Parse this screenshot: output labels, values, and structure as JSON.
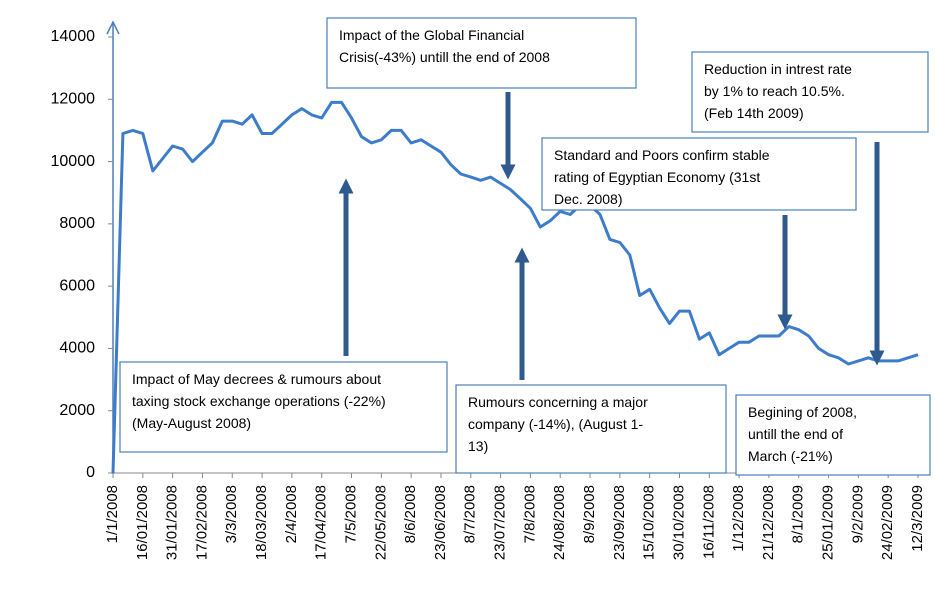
{
  "chart_data": {
    "type": "line",
    "categories": [
      "1/1/2008",
      null,
      null,
      "16/01/2008",
      null,
      null,
      "31/01/2008",
      null,
      null,
      "17/02/2008",
      null,
      null,
      "3/3/2008",
      null,
      null,
      "18/03/2008",
      null,
      null,
      "2/4/2008",
      null,
      null,
      "17/04/2008",
      null,
      null,
      "7/5/2008",
      null,
      null,
      "22/05/2008",
      null,
      null,
      "8/6/2008",
      null,
      null,
      "23/06/2008",
      null,
      null,
      "8/7/2008",
      null,
      null,
      "23/07/2008",
      null,
      null,
      "7/8/2008",
      null,
      null,
      "24/08/2008",
      null,
      null,
      "8/9/2008",
      null,
      null,
      "23/09/2008",
      null,
      null,
      "15/10/2008",
      null,
      null,
      "30/10/2008",
      null,
      null,
      "16/11/2008",
      null,
      null,
      "1/12/2008",
      null,
      null,
      "21/12/2008",
      null,
      null,
      "8/1/2009",
      null,
      null,
      "25/01/2009",
      null,
      null,
      "9/2/2009",
      null,
      null,
      "24/02/2009",
      null,
      null,
      "12/3/2009"
    ],
    "values": [
      0,
      10900,
      11000,
      10900,
      9700,
      10100,
      10500,
      10400,
      10000,
      10300,
      10600,
      11300,
      11300,
      11200,
      11500,
      10900,
      10900,
      11200,
      11500,
      11700,
      11500,
      11400,
      11900,
      11900,
      11400,
      10800,
      10600,
      10700,
      11000,
      11000,
      10600,
      10700,
      10500,
      10300,
      9900,
      9600,
      9500,
      9400,
      9500,
      9300,
      9100,
      8800,
      8500,
      7900,
      8100,
      8400,
      8300,
      8600,
      8600,
      8300,
      7500,
      7400,
      7000,
      5700,
      5900,
      5300,
      4800,
      5200,
      5200,
      4300,
      4500,
      3800,
      4000,
      4200,
      4200,
      4400,
      4400,
      4400,
      4700,
      4600,
      4400,
      4000,
      3800,
      3700,
      3500,
      3600,
      3700,
      3600,
      3600,
      3600,
      3700,
      3800
    ],
    "color": "#3d7cc9",
    "ylim": [
      0,
      14000
    ],
    "yticks": [
      0,
      2000,
      4000,
      6000,
      8000,
      10000,
      12000,
      14000
    ],
    "grid": false,
    "annotations": [
      {
        "lines": [
          "Impact of the Global Financial",
          "Crisis(-43%) untill the end of 2008"
        ]
      },
      {
        "lines": [
          "Reduction in intrest rate",
          "by 1% to reach 10.5%.",
          "(Feb 14th 2009)"
        ]
      },
      {
        "lines": [
          "Standard and Poors confirm stable",
          "rating of Egyptian Economy (31st",
          "Dec. 2008)"
        ]
      },
      {
        "lines": [
          "Impact of May  decrees & rumours about",
          "taxing  stock exchange operations (-22%)",
          "(May-August 2008)"
        ]
      },
      {
        "lines": [
          "Rumours concerning a major",
          "company (-14%), (August 1-",
          "13)"
        ]
      },
      {
        "lines": [
          "Begining of 2008,",
          "untill the end of",
          "March  (-21%)"
        ]
      }
    ]
  }
}
